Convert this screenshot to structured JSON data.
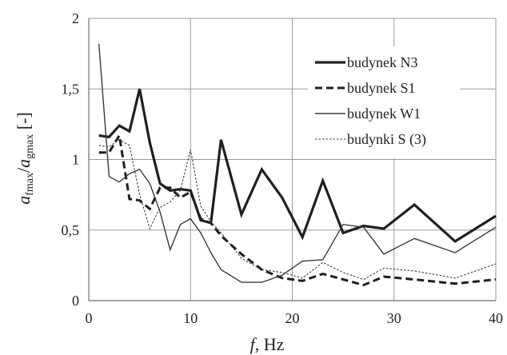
{
  "chart_data": {
    "type": "line",
    "xlim": [
      0,
      40
    ],
    "ylim": [
      0,
      2
    ],
    "x_ticks": [
      "0",
      "10",
      "20",
      "30",
      "40"
    ],
    "y_ticks": [
      "0",
      "0,5",
      "1",
      "1,5",
      "2"
    ],
    "xlabel_italic": "f",
    "xlabel_rest": ",  Hz",
    "ylabel": {
      "a1": "a",
      "sub1": "fmax",
      "slash": "/",
      "a2": "a",
      "sub2": "gmax",
      "unit": " [-]"
    },
    "grid": true,
    "legend_position": "upper-right",
    "series": [
      {
        "name": "budynek N3",
        "color": "#1f1f1f",
        "style": "thick-solid",
        "points": [
          [
            1,
            1.17
          ],
          [
            2,
            1.16
          ],
          [
            3,
            1.24
          ],
          [
            4,
            1.2
          ],
          [
            5,
            1.5
          ],
          [
            6,
            1.12
          ],
          [
            7,
            0.83
          ],
          [
            8,
            0.78
          ],
          [
            9,
            0.79
          ],
          [
            10,
            0.78
          ],
          [
            11,
            0.57
          ],
          [
            12,
            0.55
          ],
          [
            13,
            1.14
          ],
          [
            15,
            0.61
          ],
          [
            17,
            0.93
          ],
          [
            19,
            0.73
          ],
          [
            21,
            0.45
          ],
          [
            23,
            0.85
          ],
          [
            25,
            0.48
          ],
          [
            27,
            0.53
          ],
          [
            29,
            0.51
          ],
          [
            32,
            0.68
          ],
          [
            36,
            0.42
          ],
          [
            40,
            0.6
          ]
        ]
      },
      {
        "name": "budynek S1",
        "color": "#1f1f1f",
        "style": "dashed",
        "points": [
          [
            1,
            1.05
          ],
          [
            2,
            1.05
          ],
          [
            3,
            1.17
          ],
          [
            4,
            0.72
          ],
          [
            5,
            0.71
          ],
          [
            6,
            0.65
          ],
          [
            7,
            0.8
          ],
          [
            8,
            0.8
          ],
          [
            9,
            0.73
          ],
          [
            10,
            0.77
          ],
          [
            11,
            0.58
          ],
          [
            12,
            0.55
          ],
          [
            13,
            0.46
          ],
          [
            15,
            0.33
          ],
          [
            17,
            0.22
          ],
          [
            19,
            0.16
          ],
          [
            21,
            0.14
          ],
          [
            23,
            0.19
          ],
          [
            25,
            0.15
          ],
          [
            27,
            0.11
          ],
          [
            29,
            0.17
          ],
          [
            32,
            0.15
          ],
          [
            36,
            0.12
          ],
          [
            40,
            0.15
          ]
        ]
      },
      {
        "name": "budynek W1",
        "color": "#3a3a3a",
        "style": "thin-solid",
        "points": [
          [
            1,
            1.82
          ],
          [
            2,
            0.88
          ],
          [
            3,
            0.84
          ],
          [
            4,
            0.9
          ],
          [
            5,
            0.93
          ],
          [
            6,
            0.83
          ],
          [
            7,
            0.63
          ],
          [
            8,
            0.36
          ],
          [
            9,
            0.54
          ],
          [
            10,
            0.58
          ],
          [
            11,
            0.48
          ],
          [
            12,
            0.34
          ],
          [
            13,
            0.22
          ],
          [
            15,
            0.13
          ],
          [
            17,
            0.13
          ],
          [
            19,
            0.18
          ],
          [
            21,
            0.28
          ],
          [
            23,
            0.29
          ],
          [
            25,
            0.54
          ],
          [
            27,
            0.52
          ],
          [
            29,
            0.33
          ],
          [
            32,
            0.44
          ],
          [
            36,
            0.34
          ],
          [
            40,
            0.52
          ]
        ]
      },
      {
        "name": "budynki S (3)",
        "color": "#3a3a3a",
        "style": "dotted",
        "points": [
          [
            1,
            1.1
          ],
          [
            2,
            1.09
          ],
          [
            3,
            1.14
          ],
          [
            4,
            1.1
          ],
          [
            5,
            0.75
          ],
          [
            6,
            0.51
          ],
          [
            7,
            0.66
          ],
          [
            8,
            0.7
          ],
          [
            9,
            0.78
          ],
          [
            10,
            1.07
          ],
          [
            11,
            0.67
          ],
          [
            12,
            0.56
          ],
          [
            13,
            0.48
          ],
          [
            15,
            0.3
          ],
          [
            17,
            0.22
          ],
          [
            19,
            0.2
          ],
          [
            21,
            0.16
          ],
          [
            23,
            0.27
          ],
          [
            25,
            0.2
          ],
          [
            27,
            0.15
          ],
          [
            29,
            0.23
          ],
          [
            32,
            0.21
          ],
          [
            36,
            0.16
          ],
          [
            40,
            0.26
          ]
        ]
      }
    ]
  }
}
